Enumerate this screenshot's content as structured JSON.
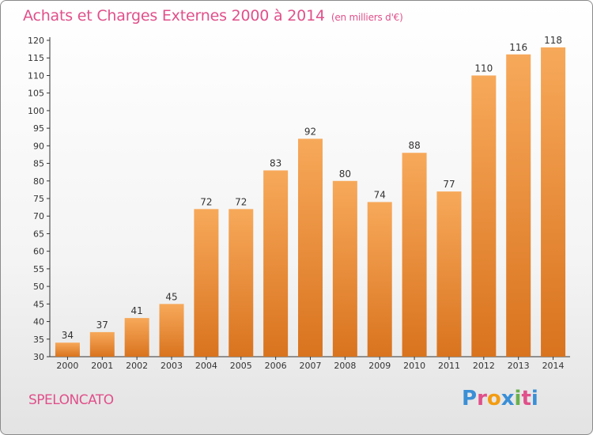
{
  "title": "Achats et Charges Externes 2000 à 2014",
  "subtitle": "(en milliers d'€)",
  "commune": "SPELONCATO",
  "logo": "Proxiti",
  "colors": {
    "title": "#e0508a",
    "bar_light": "#f7a95a",
    "bar_dark": "#d9731e",
    "logo_letters": [
      "#3a8fd6",
      "#e0508a",
      "#f39c12",
      "#3a8fd6",
      "#6ab04c",
      "#e0508a",
      "#3a8fd6"
    ]
  },
  "chart_data": {
    "type": "bar",
    "categories": [
      "2000",
      "2001",
      "2002",
      "2003",
      "2004",
      "2005",
      "2006",
      "2007",
      "2008",
      "2009",
      "2010",
      "2011",
      "2012",
      "2013",
      "2014"
    ],
    "values": [
      34,
      37,
      41,
      45,
      72,
      72,
      83,
      92,
      80,
      74,
      88,
      77,
      110,
      116,
      118
    ],
    "data_labels": [
      "34",
      "37",
      "41",
      "45",
      "72",
      "72",
      "83",
      "92",
      "80",
      "74",
      "88",
      "77",
      "110",
      "116",
      "118"
    ],
    "ylim": [
      30,
      120
    ],
    "yticks": [
      30,
      35,
      40,
      45,
      50,
      55,
      60,
      65,
      70,
      75,
      80,
      85,
      90,
      95,
      100,
      105,
      110,
      115,
      120
    ],
    "grid": false,
    "legend": "none"
  }
}
